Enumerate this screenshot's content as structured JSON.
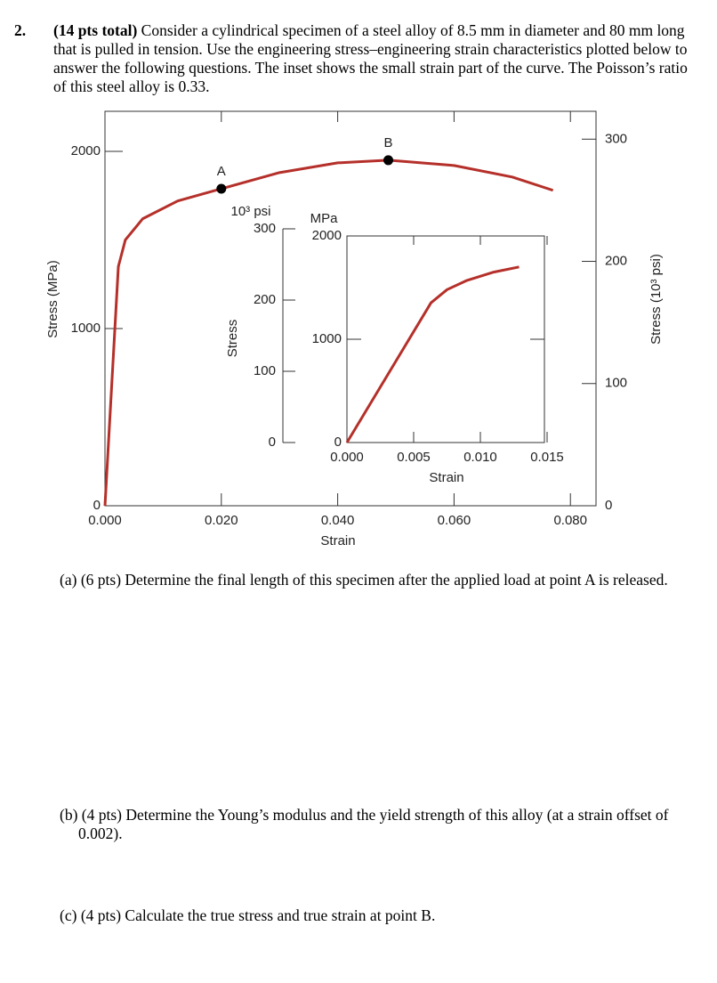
{
  "problem": {
    "number": "2.",
    "points": "(14 pts total)",
    "text": "Consider a cylindrical specimen of a steel alloy of 8.5 mm in diameter and 80 mm long that is pulled in tension. Use the engineering stress–engineering strain characteristics plotted below to answer the following questions. The inset shows the small strain part of the curve. The Poisson’s ratio of this steel alloy is 0.33."
  },
  "chart_data": [
    {
      "type": "line",
      "x_label": "Strain",
      "y_label": "Stress (MPa)",
      "y2_label": "Stress (10³ psi)",
      "xlim": [
        0,
        0.0844
      ],
      "xticks": [
        {
          "value": 0,
          "label": "0.000"
        },
        {
          "value": 0.02,
          "label": "0.020"
        },
        {
          "value": 0.04,
          "label": "0.040"
        },
        {
          "value": 0.06,
          "label": "0.060"
        },
        {
          "value": 0.08,
          "label": "0.080"
        }
      ],
      "ylim": [
        0,
        2226
      ],
      "yticks": [
        0,
        1000,
        2000
      ],
      "y2lim": [
        0,
        322.8
      ],
      "y2ticks": [
        0,
        100,
        200,
        300
      ],
      "series": [
        {
          "color": "#b5302a",
          "x": [
            0,
            0.0023,
            0.0035,
            0.0065,
            0.0125,
            0.02,
            0.03,
            0.04,
            0.0487,
            0.06,
            0.07,
            0.077
          ],
          "values": [
            0,
            1350,
            1500,
            1620,
            1720,
            1789,
            1880,
            1935,
            1950,
            1920,
            1855,
            1780
          ]
        }
      ],
      "points": [
        {
          "label": "A",
          "x": 0.02,
          "y": 1789
        },
        {
          "label": "B",
          "x": 0.0487,
          "y": 1950
        }
      ]
    },
    {
      "type": "line",
      "x_label": "Strain",
      "y_label": "Stress",
      "y_unit": "MPa",
      "y2_unit": "10³ psi",
      "xlim": [
        0,
        0.0148
      ],
      "xticks": [
        {
          "value": 0,
          "label": "0.000"
        },
        {
          "value": 0.005,
          "label": "0.005"
        },
        {
          "value": 0.01,
          "label": "0.010"
        },
        {
          "value": 0.015,
          "label": "0.015"
        }
      ],
      "ylim": [
        0,
        2000
      ],
      "yticks": [
        0,
        1000,
        2000
      ],
      "y2lim": [
        0,
        290
      ],
      "y2ticks": [
        0,
        100,
        200,
        300
      ],
      "series": [
        {
          "color": "#b5302a",
          "x": [
            0,
            0.0063,
            0.0075,
            0.009,
            0.011,
            0.0129
          ],
          "values": [
            0,
            1353,
            1480,
            1570,
            1650,
            1700
          ]
        }
      ]
    }
  ],
  "questions": [
    {
      "label": "(a)",
      "points": "(6 pts)",
      "text": "Determine the final length of this specimen after the applied load at point A is released."
    },
    {
      "label": "(b)",
      "points": "(4 pts)",
      "text": "Determine the Young’s modulus and the yield strength of this alloy (at a strain offset of 0.002)."
    },
    {
      "label": "(c)",
      "points": "(4 pts)",
      "text": "Calculate the true stress and true strain at point B."
    }
  ]
}
